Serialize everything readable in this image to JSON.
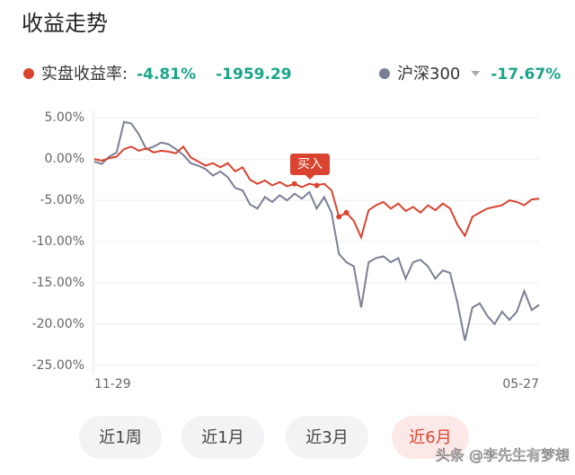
{
  "chart_data": {
    "type": "line",
    "title": "收益走势",
    "categories": [
      "11-29",
      null,
      null,
      null,
      null,
      null,
      null,
      null,
      null,
      null,
      null,
      null,
      null,
      null,
      null,
      null,
      null,
      null,
      null,
      null,
      null,
      null,
      null,
      null,
      null,
      null,
      null,
      null,
      null,
      null,
      null,
      null,
      null,
      null,
      null,
      null,
      null,
      null,
      null,
      null,
      null,
      null,
      null,
      null,
      null,
      null,
      null,
      null,
      null,
      null,
      null,
      null,
      null,
      null,
      null,
      null,
      null,
      null,
      null,
      null,
      "05-27"
    ],
    "series": [
      {
        "name": "实盘收益率:",
        "color": "#d9432f",
        "legend_values": [
          "-4.81%",
          "-1959.29"
        ],
        "values": [
          0,
          -0.2,
          0.1,
          0.3,
          1.2,
          1.5,
          1.0,
          1.3,
          0.8,
          1.0,
          0.9,
          0.7,
          1.5,
          0.2,
          -0.3,
          -0.8,
          -0.5,
          -1.0,
          -0.5,
          -1.5,
          -1.0,
          -2.5,
          -3.0,
          -2.6,
          -3.2,
          -2.8,
          -3.3,
          -3.0,
          -3.4,
          -3.0,
          -3.2,
          -3.0,
          -3.8,
          -7.0,
          -6.5,
          -7.5,
          -9.5,
          -6.2,
          -5.6,
          -5.2,
          -6.0,
          -5.4,
          -6.3,
          -5.8,
          -6.5,
          -5.6,
          -6.2,
          -5.4,
          -6.0,
          -8.0,
          -9.3,
          -7.0,
          -6.5,
          -6.0,
          -5.8,
          -5.6,
          -5.0,
          -5.2,
          -5.6,
          -4.9,
          -4.81
        ]
      },
      {
        "name": "沪深300",
        "color": "#7b7f96",
        "legend_values": [
          "-17.67%"
        ],
        "values": [
          -0.3,
          -0.6,
          0.3,
          0.8,
          4.5,
          4.3,
          3.0,
          1.2,
          1.5,
          2.0,
          1.8,
          1.2,
          0.5,
          -0.5,
          -0.8,
          -1.2,
          -2.0,
          -1.5,
          -2.2,
          -3.5,
          -3.8,
          -5.5,
          -6.0,
          -4.6,
          -5.2,
          -4.4,
          -5.0,
          -4.2,
          -4.8,
          -4.0,
          -6.0,
          -4.6,
          -6.5,
          -11.5,
          -12.5,
          -13.0,
          -18.0,
          -12.5,
          -12.0,
          -11.8,
          -12.5,
          -12.0,
          -14.5,
          -12.5,
          -12.2,
          -13.0,
          -14.5,
          -13.5,
          -13.8,
          -17.5,
          -22.0,
          -18.0,
          -17.5,
          -19.0,
          -20.0,
          -18.5,
          -19.5,
          -18.5,
          -16.0,
          -18.3,
          -17.67
        ]
      }
    ],
    "annotation": "买入",
    "ylim": [
      -26,
      6
    ],
    "yticks": [
      {
        "value": 5,
        "label": "5.00%"
      },
      {
        "value": 0,
        "label": "0.00%"
      },
      {
        "value": -5,
        "label": "-5.00%"
      },
      {
        "value": -10,
        "label": "-10.00%"
      },
      {
        "value": -15,
        "label": "-15.00%"
      },
      {
        "value": -20,
        "label": "-20.00%"
      },
      {
        "value": -25,
        "label": "-25.00%"
      }
    ],
    "grid": true
  },
  "buttons": [
    "近1周",
    "近1月",
    "近3月",
    "近6月"
  ],
  "selected_button": 3,
  "watermark": "头条 @李先生有梦想"
}
